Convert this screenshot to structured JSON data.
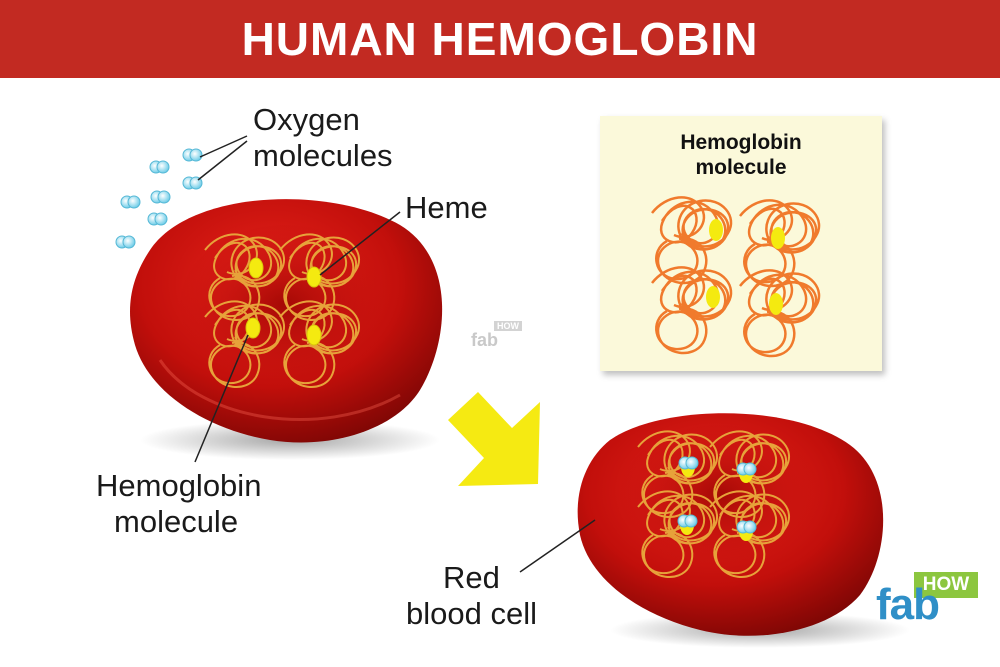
{
  "title": "HUMAN HEMOGLOBIN",
  "labels": {
    "oxygen_line1": "Oxygen",
    "oxygen_line2": "molecules",
    "heme": "Heme",
    "hemoglobin_line1": "Hemoglobin",
    "hemoglobin_line2": "molecule",
    "red_line1": "Red",
    "red_line2": "blood cell"
  },
  "inset": {
    "title_line1": "Hemoglobin",
    "title_line2": "molecule"
  },
  "logo": {
    "fab": "fab",
    "how": "HOW"
  },
  "watermark": {
    "fab": "fab",
    "how": "HOW"
  },
  "colors": {
    "banner": "#c22a22",
    "cell": "#c8120e",
    "strand": "#e7a23a",
    "inset_strand": "#f07a2c",
    "heme": "#f4ea10",
    "oxygen": "#9fe0f2",
    "arrow": "#f5ea12"
  }
}
